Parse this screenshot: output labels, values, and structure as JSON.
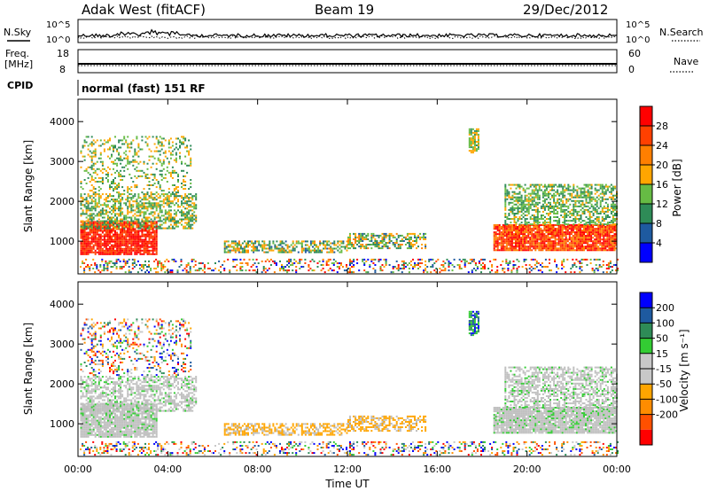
{
  "header": {
    "station": "Adak West (fitACF)",
    "beam": "Beam 19",
    "date": "29/Dec/2012"
  },
  "status_panel": {
    "nsky_label": "N.Sky",
    "nsearch_label": "N.Search",
    "noise_ticks": [
      "10^5",
      "10^0"
    ],
    "freq_label_1": "Freq.",
    "freq_label_2": "[MHz]",
    "freq_ticks": [
      "18",
      "8"
    ],
    "nave_label": "Nave",
    "nave_ticks": [
      "60",
      "0"
    ],
    "cpid_label": "CPID",
    "cpid_value": "normal (fast) 151 RF"
  },
  "colors": {
    "power_scale": [
      "#0000ff",
      "#1e5aa0",
      "#2e8b57",
      "#66bb44",
      "#ffa500",
      "#ff7f00",
      "#ff4000",
      "#ff0000"
    ],
    "velocity_scale": [
      "#ff0000",
      "#ff5000",
      "#ff8c00",
      "#ffa500",
      "#c8c8c8",
      "#c8c8c8",
      "#33cc33",
      "#2e8b57",
      "#1e5aa0",
      "#0000ff"
    ],
    "ground_scatter": "#bfbfbf"
  },
  "chart_data": [
    {
      "type": "heatmap",
      "name": "power",
      "ylabel": "Slant Range [km]",
      "xlabel": "",
      "x_range_hours": [
        0,
        24
      ],
      "y_range_km": [
        180,
        4560
      ],
      "yticks": [
        1000,
        2000,
        3000,
        4000
      ],
      "colorbar": {
        "label": "Power [dB]",
        "ticks": [
          4,
          8,
          12,
          16,
          20,
          24,
          28
        ],
        "range": [
          0,
          32
        ]
      }
    },
    {
      "type": "heatmap",
      "name": "velocity",
      "ylabel": "Slant Range [km]",
      "xlabel": "Time UT",
      "x_range_hours": [
        0,
        24
      ],
      "y_range_km": [
        180,
        4560
      ],
      "xticks": [
        "00:00",
        "04:00",
        "08:00",
        "12:00",
        "16:00",
        "20:00",
        "00:00"
      ],
      "yticks": [
        1000,
        2000,
        3000,
        4000
      ],
      "colorbar": {
        "label": "Velocity [m s⁻¹]",
        "ticks": [
          200,
          100,
          50,
          15,
          -15,
          -50,
          -100,
          -200
        ]
      }
    }
  ]
}
